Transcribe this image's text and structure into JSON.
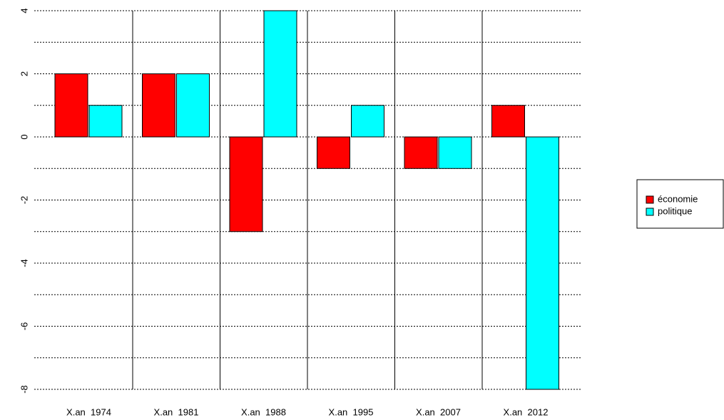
{
  "chart_data": {
    "type": "bar",
    "categories": [
      "X.an  1974",
      "X.an  1981",
      "X.an  1988",
      "X.an  1995",
      "X.an  2007",
      "X.an  2012"
    ],
    "series": [
      {
        "name": "économie",
        "color": "#ff0000",
        "values": [
          2,
          2,
          -3,
          -1,
          -1,
          1
        ]
      },
      {
        "name": "politique",
        "color": "#00ffff",
        "values": [
          1,
          2,
          4,
          1,
          -1,
          -8
        ]
      }
    ],
    "ylim": [
      -8,
      4
    ],
    "yticks": [
      -8,
      -6,
      -4,
      -2,
      0,
      2,
      4
    ],
    "ygrid": [
      -8,
      -7,
      -6,
      -5,
      -4,
      -3,
      -2,
      -1,
      0,
      1,
      2,
      3,
      4
    ],
    "grid": true,
    "legend": "right"
  }
}
